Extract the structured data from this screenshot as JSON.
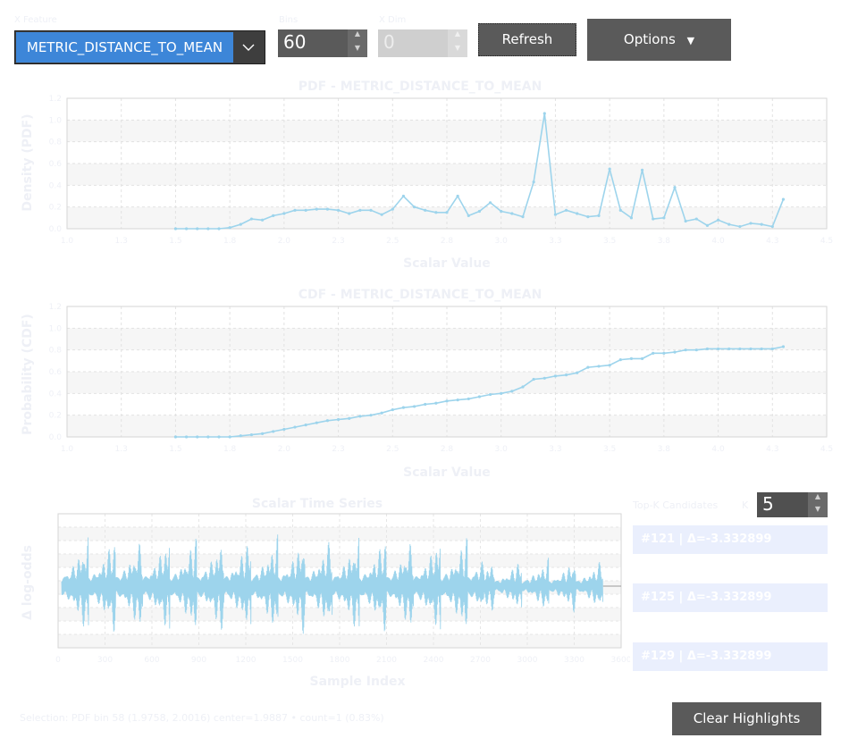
{
  "controls": {
    "feature_label": "X Feature",
    "feature_value": "METRIC_DISTANCE_TO_MEAN",
    "bins_label": "Bins",
    "bins_value": "60",
    "xdim_label": "X Dim",
    "xdim_value": "0",
    "refresh_label": "Refresh",
    "options_label": "Options"
  },
  "pdf": {
    "title": "PDF - METRIC_DISTANCE_TO_MEAN",
    "ylabel": "Density (PDF)",
    "xlabel": "Scalar Value"
  },
  "cdf": {
    "title": "CDF - METRIC_DISTANCE_TO_MEAN",
    "ylabel": "Probability (CDF)",
    "xlabel": "Scalar Value"
  },
  "timeseries": {
    "title": "Scalar Time Series",
    "ylabel": "Δ log-odds",
    "xlabel": "Sample Index"
  },
  "candidates": {
    "label": "Top-K Candidates",
    "k_label": "K",
    "k_value": "5",
    "items": [
      "#121  |  Δ=-3.332899",
      "#125  |  Δ=-3.332899",
      "#129  |  Δ=-3.332899"
    ]
  },
  "status": "Selection:   PDF bin 58 (1.9758, 2.0016) center=1.9887 • count=1 (0.83%)",
  "clear_label": "Clear Highlights",
  "colors": {
    "series": "#9dd4ec",
    "accent": "#3d86d8",
    "button_dark": "#5a5a5a"
  },
  "chart_data": [
    {
      "type": "line",
      "title": "PDF - METRIC_DISTANCE_TO_MEAN",
      "xlabel": "Scalar Value",
      "ylabel": "Density (PDF)",
      "x": [
        1.5,
        1.55,
        1.6,
        1.65,
        1.7,
        1.75,
        1.8,
        1.85,
        1.9,
        1.95,
        2.0,
        2.05,
        2.1,
        2.15,
        2.2,
        2.25,
        2.3,
        2.35,
        2.4,
        2.45,
        2.5,
        2.55,
        2.6,
        2.65,
        2.7,
        2.75,
        2.8,
        2.85,
        2.9,
        2.95,
        3.0,
        3.05,
        3.1,
        3.15,
        3.2,
        3.25,
        3.3,
        3.35,
        3.4,
        3.45,
        3.5,
        3.55,
        3.6,
        3.65,
        3.7,
        3.75,
        3.8,
        3.85,
        3.9,
        3.95,
        4.0,
        4.05,
        4.1,
        4.15,
        4.2,
        4.25,
        4.3
      ],
      "values": [
        0.0,
        0.0,
        0.0,
        0.0,
        0.0,
        0.01,
        0.04,
        0.09,
        0.08,
        0.12,
        0.14,
        0.17,
        0.17,
        0.18,
        0.18,
        0.17,
        0.14,
        0.17,
        0.17,
        0.13,
        0.18,
        0.3,
        0.2,
        0.17,
        0.15,
        0.15,
        0.3,
        0.12,
        0.16,
        0.24,
        0.16,
        0.14,
        0.11,
        0.43,
        1.06,
        0.13,
        0.17,
        0.14,
        0.11,
        0.12,
        0.55,
        0.17,
        0.1,
        0.54,
        0.09,
        0.1,
        0.38,
        0.07,
        0.09,
        0.03,
        0.08,
        0.04,
        0.02,
        0.05,
        0.04,
        0.02,
        0.27
      ],
      "ylim": [
        0,
        1.2
      ],
      "xlim": [
        1.0,
        4.5
      ],
      "grid": true
    },
    {
      "type": "line",
      "title": "CDF - METRIC_DISTANCE_TO_MEAN",
      "xlabel": "Scalar Value",
      "ylabel": "Probability (CDF)",
      "x": [
        1.5,
        1.55,
        1.6,
        1.65,
        1.7,
        1.75,
        1.8,
        1.85,
        1.9,
        1.95,
        2.0,
        2.05,
        2.1,
        2.15,
        2.2,
        2.25,
        2.3,
        2.35,
        2.4,
        2.45,
        2.5,
        2.55,
        2.6,
        2.65,
        2.7,
        2.75,
        2.8,
        2.85,
        2.9,
        2.95,
        3.0,
        3.05,
        3.1,
        3.15,
        3.2,
        3.25,
        3.3,
        3.35,
        3.4,
        3.45,
        3.5,
        3.55,
        3.6,
        3.65,
        3.7,
        3.75,
        3.8,
        3.85,
        3.9,
        3.95,
        4.0,
        4.05,
        4.1,
        4.15,
        4.2,
        4.25,
        4.3
      ],
      "values": [
        0.0,
        0.0,
        0.0,
        0.0,
        0.0,
        0.0,
        0.01,
        0.02,
        0.03,
        0.05,
        0.07,
        0.09,
        0.11,
        0.13,
        0.15,
        0.16,
        0.17,
        0.19,
        0.2,
        0.22,
        0.25,
        0.27,
        0.28,
        0.3,
        0.31,
        0.33,
        0.34,
        0.35,
        0.37,
        0.39,
        0.4,
        0.42,
        0.46,
        0.53,
        0.54,
        0.56,
        0.57,
        0.59,
        0.64,
        0.65,
        0.66,
        0.71,
        0.72,
        0.72,
        0.77,
        0.77,
        0.78,
        0.8,
        0.8,
        0.81,
        0.81,
        0.81,
        0.81,
        0.81,
        0.81,
        0.81,
        0.83
      ],
      "ylim": [
        0,
        1.2
      ],
      "xlim": [
        1.0,
        4.5
      ],
      "grid": true
    },
    {
      "type": "line",
      "title": "Scalar Time Series",
      "xlabel": "Sample Index",
      "ylabel": "Δ log-odds",
      "samples": 3300,
      "xlim": [
        0,
        3600
      ],
      "grid": true,
      "description_values": "oscillating signal with bursts"
    }
  ]
}
